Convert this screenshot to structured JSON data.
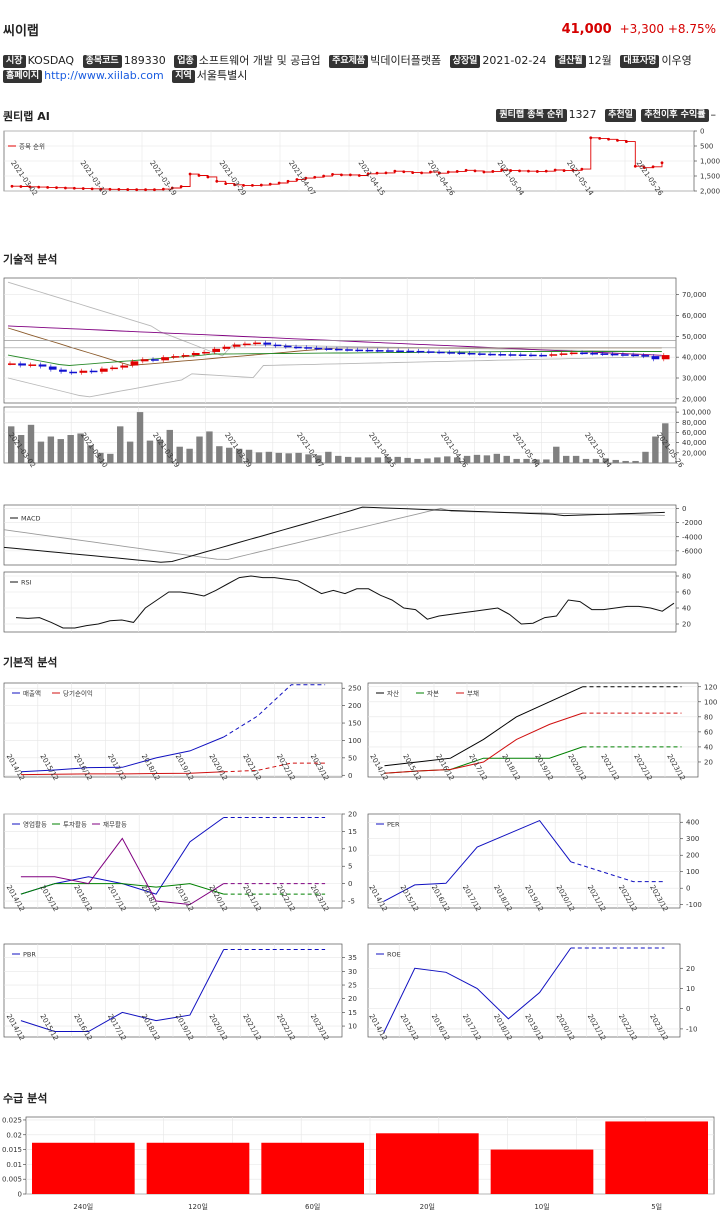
{
  "header": {
    "name": "씨이랩",
    "price": "41,000",
    "change": "+3,300",
    "change_pct": "+8.75%"
  },
  "info": {
    "market_label": "시장",
    "market": "KOSDAQ",
    "code_label": "종목코드",
    "code": "189330",
    "industry_label": "업종",
    "industry": "소프트웨어 개발 및 공급업",
    "product_label": "주요제품",
    "product": "빅데이터플랫폼",
    "listing_label": "상장일",
    "listing": "2021-02-24",
    "fiscal_label": "결산월",
    "fiscal": "12월",
    "ceo_label": "대표자명",
    "ceo": "이우영",
    "homepage_label": "홈페이지",
    "homepage": "http://www.xiilab.com",
    "region_label": "지역",
    "region": "서울특별시"
  },
  "quant": {
    "title": "퀀티랩 AI",
    "rank_label": "퀀티랩 종목 순위",
    "rank": "1327",
    "recommend_label": "추천일",
    "return_label": "추천이후 수익률",
    "return": "–"
  },
  "sections": {
    "tech": "기술적 분석",
    "fund": "기본적 분석",
    "supply": "수급 분석"
  },
  "colors": {
    "up": "#e00000",
    "down": "#1010d0",
    "bar": "#808080",
    "grid": "#e6e6e6"
  },
  "chart_data": [
    {
      "id": "rank",
      "type": "line",
      "legend": "종목 순위",
      "y_inverted": true,
      "yticks": [
        "0",
        "500",
        "1,000",
        "1,500",
        "2,000"
      ],
      "ylim": [
        2000,
        0
      ],
      "xticks": [
        "2021-03-02",
        "2021-03-10",
        "2021-03-19",
        "2021-03-29",
        "2021-04-07",
        "2021-04-15",
        "2021-04-26",
        "2021-05-04",
        "2021-05-14",
        "2021-05-26"
      ],
      "values": [
        1870,
        1880,
        1890,
        1900,
        1910,
        1920,
        1930,
        1940,
        1950,
        1960,
        1970,
        1975,
        1980,
        1985,
        1990,
        1990,
        1990,
        1970,
        1930,
        1880,
        1450,
        1500,
        1550,
        1700,
        1780,
        1820,
        1840,
        1840,
        1830,
        1800,
        1760,
        1700,
        1640,
        1590,
        1560,
        1520,
        1460,
        1480,
        1480,
        1500,
        1440,
        1420,
        1410,
        1350,
        1370,
        1400,
        1410,
        1380,
        1420,
        1380,
        1360,
        1320,
        1340,
        1380,
        1360,
        1310,
        1330,
        1340,
        1350,
        1360,
        1350,
        1310,
        1330,
        1320,
        1280,
        200,
        220,
        250,
        290,
        330,
        1180,
        1230,
        1200,
        1060
      ]
    },
    {
      "id": "price",
      "type": "candlestick",
      "yticks": [
        "20,000",
        "30,000",
        "40,000",
        "50,000",
        "60,000",
        "70,000"
      ],
      "ylim": [
        18000,
        78000
      ],
      "closes": [
        37000,
        36000,
        36500,
        35500,
        34000,
        33000,
        32500,
        33500,
        33000,
        34500,
        35000,
        36000,
        38000,
        39000,
        38500,
        40000,
        40500,
        41000,
        42000,
        42500,
        44000,
        45000,
        46000,
        46500,
        47000,
        46000,
        45500,
        45000,
        44800,
        44500,
        44200,
        44000,
        43800,
        43600,
        43500,
        43400,
        43300,
        43200,
        43100,
        43000,
        42800,
        42600,
        42400,
        42200,
        42000,
        41800,
        41600,
        41500,
        41400,
        41300,
        41200,
        41100,
        41000,
        41400,
        41800,
        42200,
        42000,
        41800,
        41600,
        41400,
        41200,
        41000,
        40500,
        39000,
        41000
      ]
    },
    {
      "id": "volume",
      "type": "bar",
      "yticks": [
        "20,000",
        "40,000",
        "60,000",
        "80,000",
        "100,000"
      ],
      "ylim": [
        0,
        110000
      ],
      "values": [
        72000,
        55000,
        75000,
        42000,
        52000,
        47000,
        55000,
        58000,
        35000,
        20000,
        18000,
        72000,
        42000,
        100000,
        44000,
        46000,
        65000,
        32000,
        28000,
        52000,
        62000,
        33000,
        30000,
        28000,
        26000,
        21000,
        22000,
        20000,
        19000,
        20000,
        17000,
        15000,
        22000,
        14000,
        12000,
        11000,
        11000,
        11000,
        12000,
        12000,
        10000,
        8000,
        9000,
        11000,
        13000,
        11000,
        14000,
        16000,
        15000,
        18000,
        14000,
        8000,
        8000,
        7000,
        7000,
        32000,
        14000,
        14000,
        8000,
        8000,
        9000,
        6000,
        4000,
        4000,
        22000,
        52000,
        78000
      ]
    },
    {
      "id": "macd",
      "type": "line",
      "legend": "MACD",
      "yticks": [
        "0",
        "-2000",
        "-4000",
        "-6000"
      ],
      "ylim": [
        -8000,
        500
      ]
    },
    {
      "id": "rsi",
      "type": "line",
      "legend": "RSI",
      "yticks": [
        "20",
        "40",
        "60",
        "80"
      ],
      "ylim": [
        10,
        85
      ],
      "values": [
        28,
        27,
        28,
        22,
        15,
        15,
        18,
        20,
        24,
        25,
        22,
        40,
        50,
        60,
        60,
        58,
        55,
        62,
        70,
        78,
        80,
        78,
        78,
        76,
        74,
        66,
        58,
        62,
        58,
        64,
        64,
        56,
        50,
        40,
        38,
        26,
        30,
        32,
        34,
        36,
        38,
        40,
        32,
        20,
        21,
        28,
        30,
        50,
        48,
        38,
        38,
        40,
        42,
        42,
        40,
        36,
        46
      ]
    },
    {
      "id": "sales",
      "type": "line",
      "series": [
        {
          "name": "매출액",
          "color": "#1010c0",
          "values": [
            10,
            15,
            22,
            23,
            50,
            70,
            110,
            170,
            260,
            260
          ]
        },
        {
          "name": "당기순이익",
          "color": "#d01010",
          "values": [
            2,
            3,
            4,
            4,
            5,
            6,
            10,
            14,
            35,
            35
          ]
        }
      ],
      "forecast_from": 6,
      "yticks": [
        "0",
        "50",
        "100",
        "150",
        "200",
        "250"
      ],
      "ylim": [
        -5,
        265
      ]
    },
    {
      "id": "balance",
      "type": "line",
      "series": [
        {
          "name": "자산",
          "color": "#000000",
          "values": [
            15,
            20,
            25,
            50,
            80,
            100,
            120,
            120,
            120,
            120
          ]
        },
        {
          "name": "자본",
          "color": "#008000",
          "values": [
            5,
            8,
            10,
            25,
            25,
            25,
            40,
            40,
            40,
            40
          ]
        },
        {
          "name": "부채",
          "color": "#d01010",
          "values": [
            5,
            8,
            10,
            20,
            50,
            70,
            85,
            85,
            85,
            85
          ]
        }
      ],
      "forecast_from": 6,
      "yticks": [
        "20",
        "40",
        "60",
        "80",
        "100",
        "120"
      ],
      "ylim": [
        0,
        125
      ]
    },
    {
      "id": "cashflow",
      "type": "line",
      "series": [
        {
          "name": "영업활동",
          "color": "#1010c0",
          "values": [
            -3,
            0,
            2,
            0,
            -3,
            12,
            19,
            19,
            19,
            19
          ]
        },
        {
          "name": "투자활동",
          "color": "#008000",
          "values": [
            -3,
            0,
            0,
            0,
            -1,
            0,
            -3,
            -3,
            -3,
            -3
          ]
        },
        {
          "name": "재무활동",
          "color": "#800080",
          "values": [
            2,
            2,
            0,
            13,
            -5,
            -6,
            0,
            0,
            0,
            0
          ]
        }
      ],
      "forecast_from": 6,
      "yticks": [
        "-5",
        "0",
        "5",
        "10",
        "15",
        "20"
      ],
      "ylim": [
        -7,
        20
      ]
    },
    {
      "id": "per",
      "type": "line",
      "series": [
        {
          "name": "PER",
          "color": "#1010c0",
          "values": [
            -80,
            20,
            30,
            250,
            330,
            410,
            160,
            100,
            40,
            40
          ]
        }
      ],
      "forecast_from": 6,
      "yticks": [
        "-100",
        "0",
        "100",
        "200",
        "300",
        "400"
      ],
      "ylim": [
        -120,
        450
      ]
    },
    {
      "id": "pbr",
      "type": "line",
      "series": [
        {
          "name": "PBR",
          "color": "#1010c0",
          "values": [
            12,
            8,
            8,
            15,
            12,
            14,
            38,
            38,
            38,
            38
          ]
        }
      ],
      "forecast_from": 6,
      "yticks": [
        "10",
        "15",
        "20",
        "25",
        "30",
        "35"
      ],
      "ylim": [
        6,
        40
      ]
    },
    {
      "id": "roe",
      "type": "line",
      "series": [
        {
          "name": "ROE",
          "color": "#1010c0",
          "values": [
            -12,
            20,
            18,
            10,
            -5,
            8,
            30,
            30,
            30,
            30
          ]
        }
      ],
      "forecast_from": 6,
      "yticks": [
        "-10",
        "0",
        "10",
        "20"
      ],
      "ylim": [
        -14,
        32
      ]
    },
    {
      "id": "supply",
      "type": "bar",
      "categories": [
        "240일",
        "120일",
        "60일",
        "20일",
        "10일",
        "5일"
      ],
      "values": [
        0.0173,
        0.0173,
        0.0173,
        0.0205,
        0.015,
        0.0245
      ],
      "yticks": [
        "0",
        "0.005",
        "0.01",
        "0.015",
        "0.02",
        "0.025"
      ],
      "ylim": [
        0,
        0.026
      ]
    }
  ],
  "fund_xticks": [
    "2014/12",
    "2015/12",
    "2016/12",
    "2017/12",
    "2018/12",
    "2019/12",
    "2020/12",
    "2021/12",
    "2022/12",
    "2023/12"
  ]
}
